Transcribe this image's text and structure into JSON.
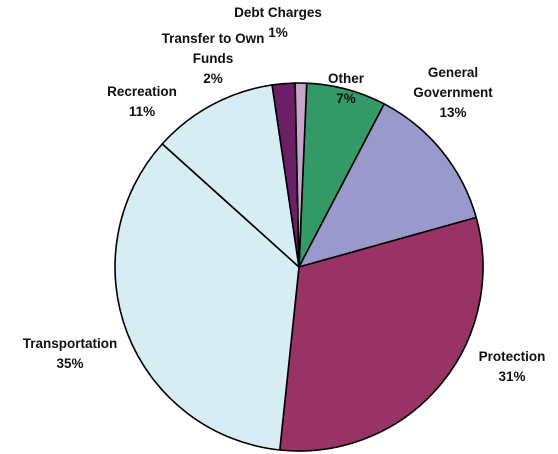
{
  "chart_data": {
    "type": "pie",
    "title": "",
    "start_angle_deg": 2.4,
    "direction": "clockwise",
    "slices": [
      {
        "label": [
          "Other"
        ],
        "pct_label": "7%",
        "value": 7,
        "color": "#339966"
      },
      {
        "label": [
          "General",
          "Government"
        ],
        "pct_label": "13%",
        "value": 13,
        "color": "#9999cc"
      },
      {
        "label": [
          "Protection"
        ],
        "pct_label": "31%",
        "value": 31,
        "color": "#993366"
      },
      {
        "label": [
          "Transportation"
        ],
        "pct_label": "35%",
        "value": 35,
        "color": "#d6edf3"
      },
      {
        "label": [
          "Recreation"
        ],
        "pct_label": "11%",
        "value": 11,
        "color": "#d6edf3"
      },
      {
        "label": [
          "Transfer to Own",
          "Funds"
        ],
        "pct_label": "2%",
        "value": 2,
        "color": "#6b1f66"
      },
      {
        "label": [
          "Debt Charges"
        ],
        "pct_label": "1%",
        "value": 1,
        "color": "#c8a6cc"
      }
    ]
  }
}
